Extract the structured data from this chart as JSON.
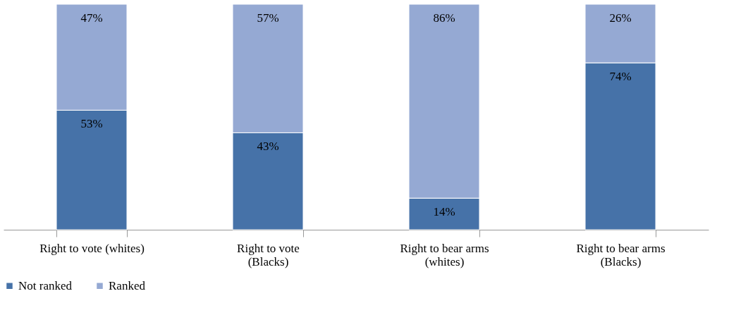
{
  "chart_data": {
    "type": "bar",
    "stacked": true,
    "categories": [
      "Right to vote (whites)",
      "Right to vote  (Blacks)",
      "Right to bear arms (whites)",
      "Right to bear arms (Blacks)"
    ],
    "series": [
      {
        "name": "Not ranked",
        "color": "#4672a8",
        "values": [
          53,
          43,
          14,
          74
        ],
        "value_labels": [
          "53%",
          "43%",
          "14%",
          "74%"
        ]
      },
      {
        "name": "Ranked",
        "color": "#95a9d3",
        "values": [
          47,
          57,
          86,
          26
        ],
        "value_labels": [
          "47%",
          "57%",
          "86%",
          "26%"
        ]
      }
    ],
    "legend": "bottom",
    "grid": false
  }
}
